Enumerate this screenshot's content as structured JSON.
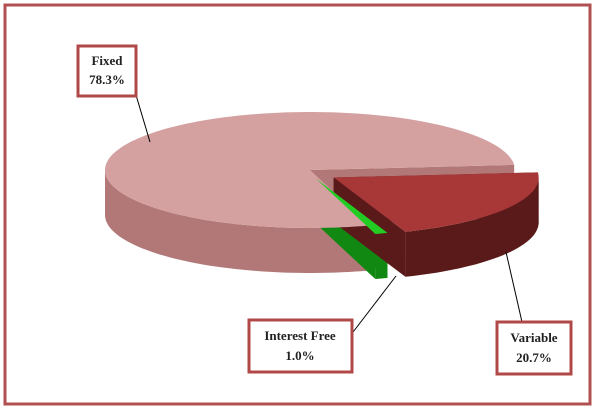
{
  "chart_data": {
    "type": "pie3d",
    "categories": [
      "Fixed",
      "Interest Free",
      "Variable"
    ],
    "values": [
      78.3,
      1.0,
      20.7
    ],
    "value_labels": [
      "78.3%",
      "1.0%",
      "20.7%"
    ],
    "colors": [
      "#d4a0a0",
      "#22cc22",
      "#a83838"
    ],
    "side_colors": [
      "#b27878",
      "#118811",
      "#5a1a1a"
    ]
  }
}
